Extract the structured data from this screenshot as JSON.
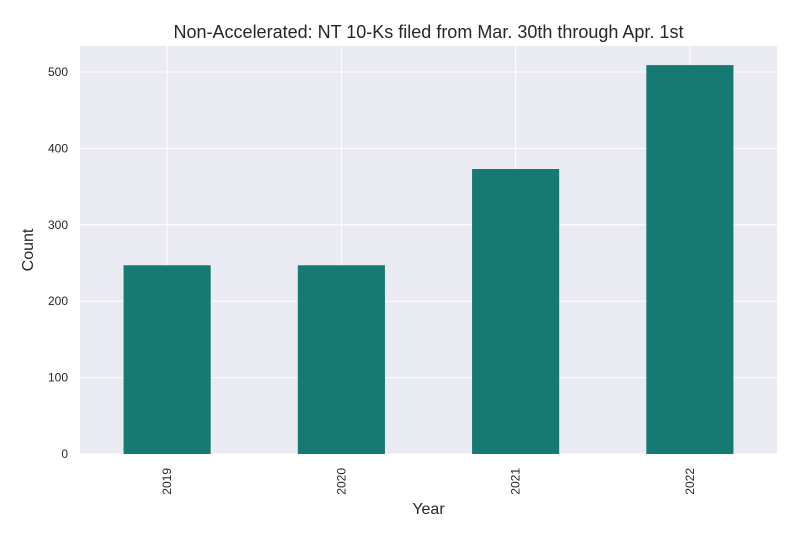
{
  "chart_data": {
    "type": "bar",
    "title": "Non-Accelerated: NT 10-Ks filed from Mar. 30th through Apr. 1st",
    "xlabel": "Year",
    "ylabel": "Count",
    "categories": [
      "2019",
      "2020",
      "2021",
      "2022"
    ],
    "values": [
      247,
      247,
      373,
      509
    ],
    "ylim": [
      0,
      534
    ],
    "yticks": [
      0,
      100,
      200,
      300,
      400,
      500
    ],
    "grid": true,
    "colors": {
      "bar": "#167a72",
      "plot_background": "#eaeaf2",
      "grid": "#ffffff"
    }
  }
}
